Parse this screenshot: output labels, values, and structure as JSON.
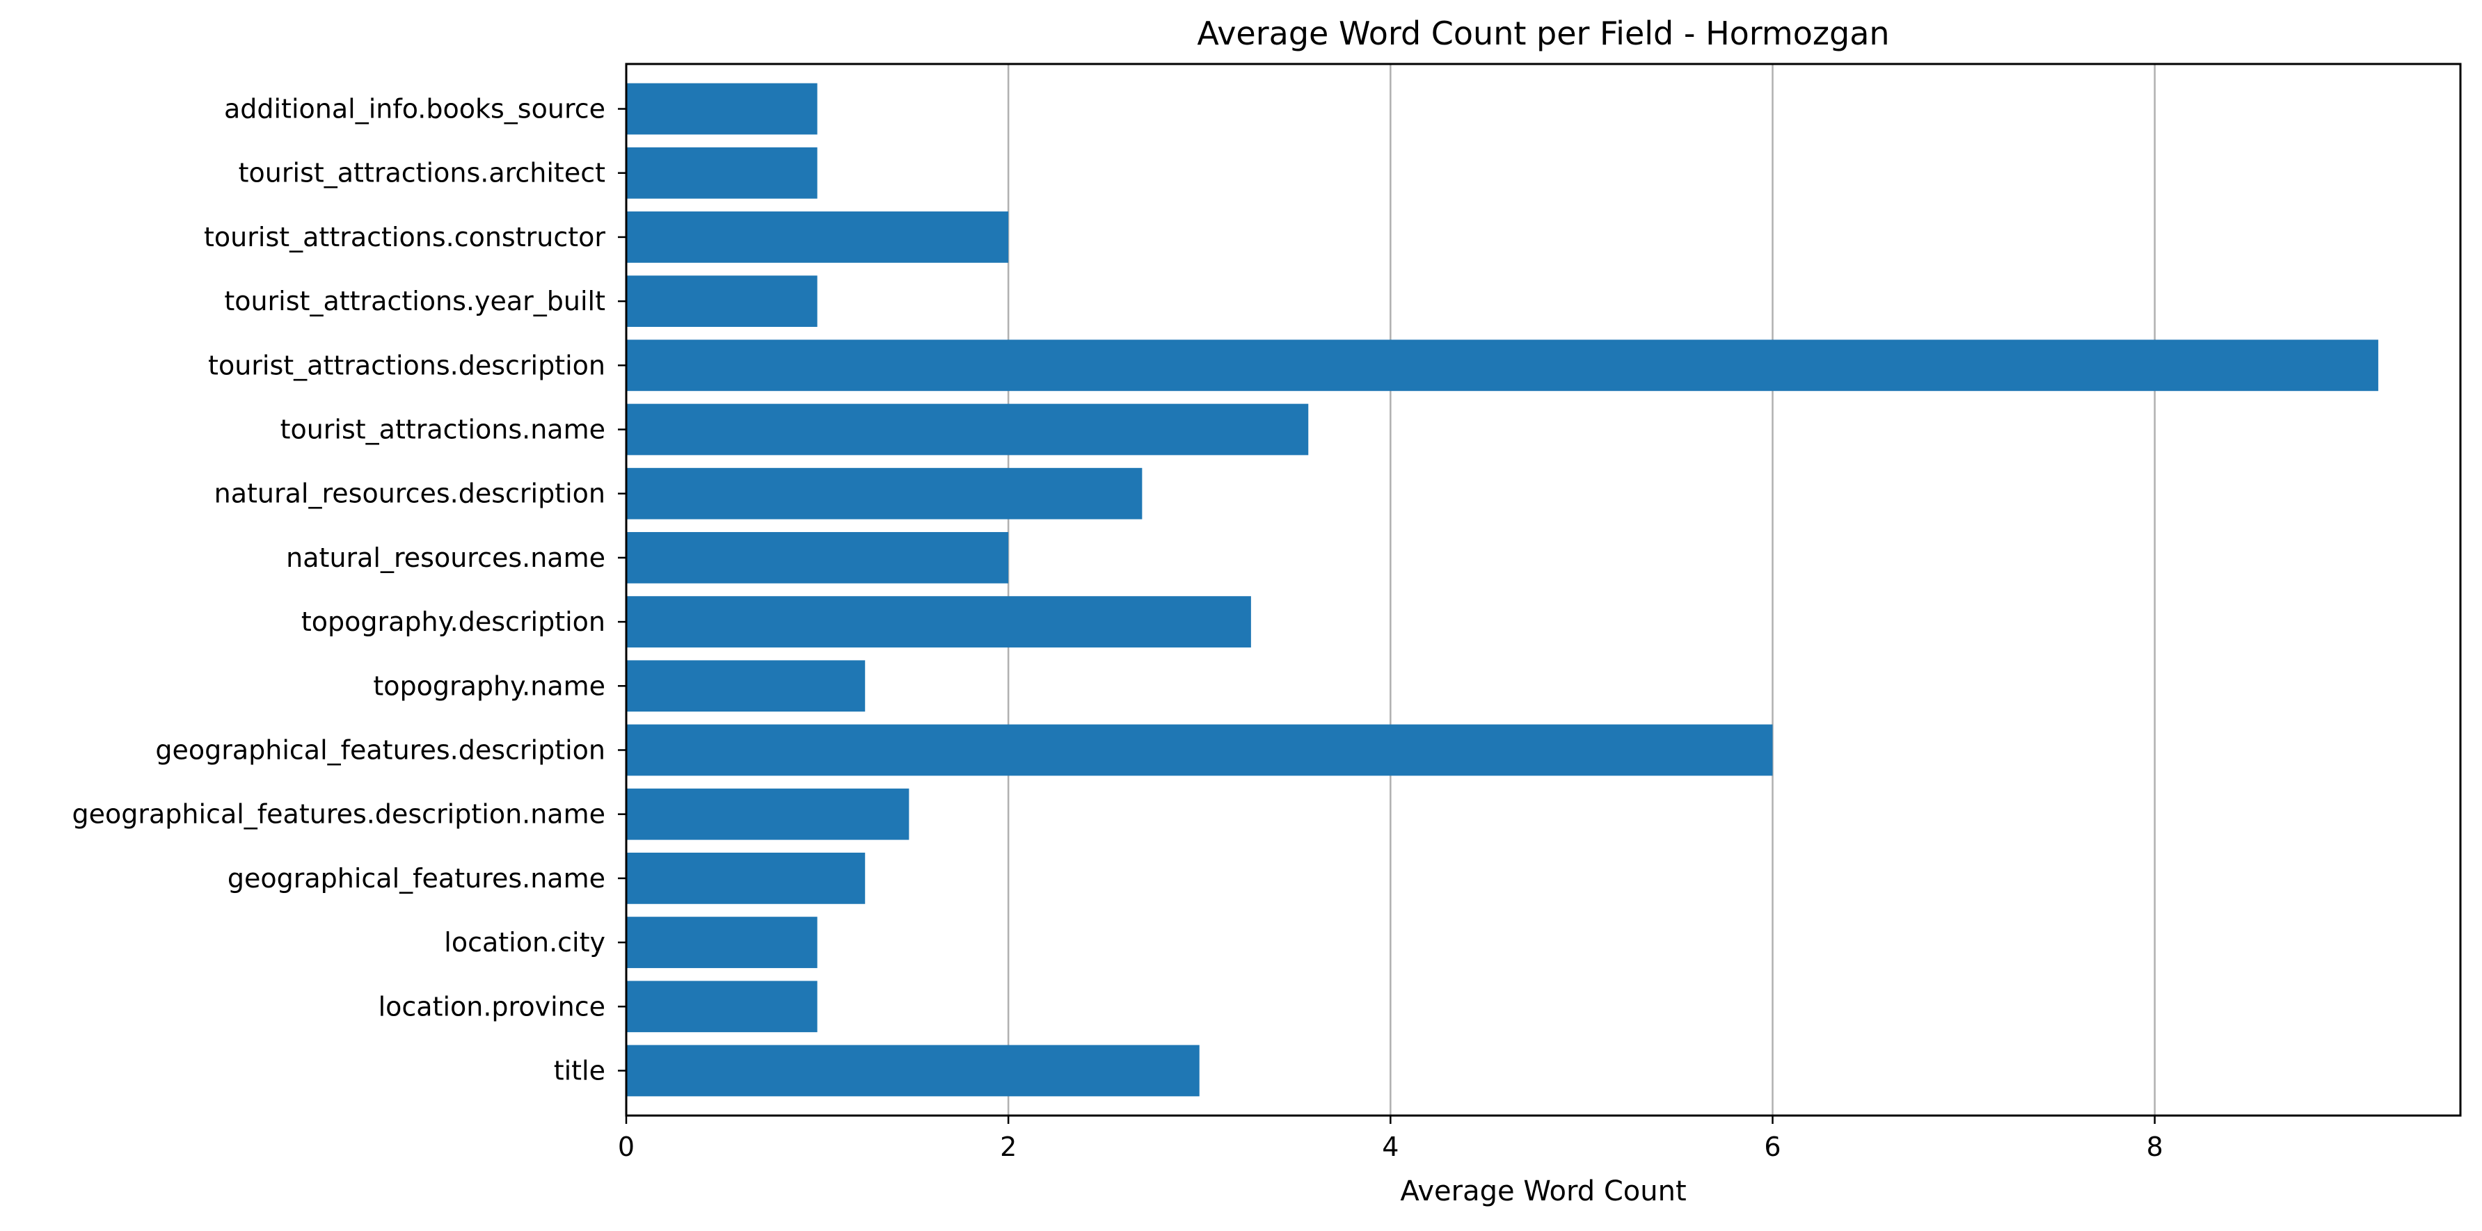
{
  "chart_data": {
    "type": "bar",
    "orientation": "horizontal",
    "title": "Average Word Count per Field - Hormozgan",
    "xlabel": "Average Word Count",
    "ylabel": "",
    "xlim": [
      0,
      9.6
    ],
    "xticks": [
      0,
      2,
      4,
      6,
      8
    ],
    "grid": "x",
    "bar_color": "#1f77b4",
    "categories": [
      "title",
      "location.province",
      "location.city",
      "geographical_features.name",
      "geographical_features.description.name",
      "geographical_features.description",
      "topography.name",
      "topography.description",
      "natural_resources.name",
      "natural_resources.description",
      "tourist_attractions.name",
      "tourist_attractions.description",
      "tourist_attractions.year_built",
      "tourist_attractions.constructor",
      "tourist_attractions.architect",
      "additional_info.books_source"
    ],
    "values": [
      3,
      1,
      1,
      1.25,
      1.48,
      6,
      1.25,
      3.27,
      2,
      2.7,
      3.57,
      9.17,
      1,
      2,
      1,
      1
    ]
  }
}
